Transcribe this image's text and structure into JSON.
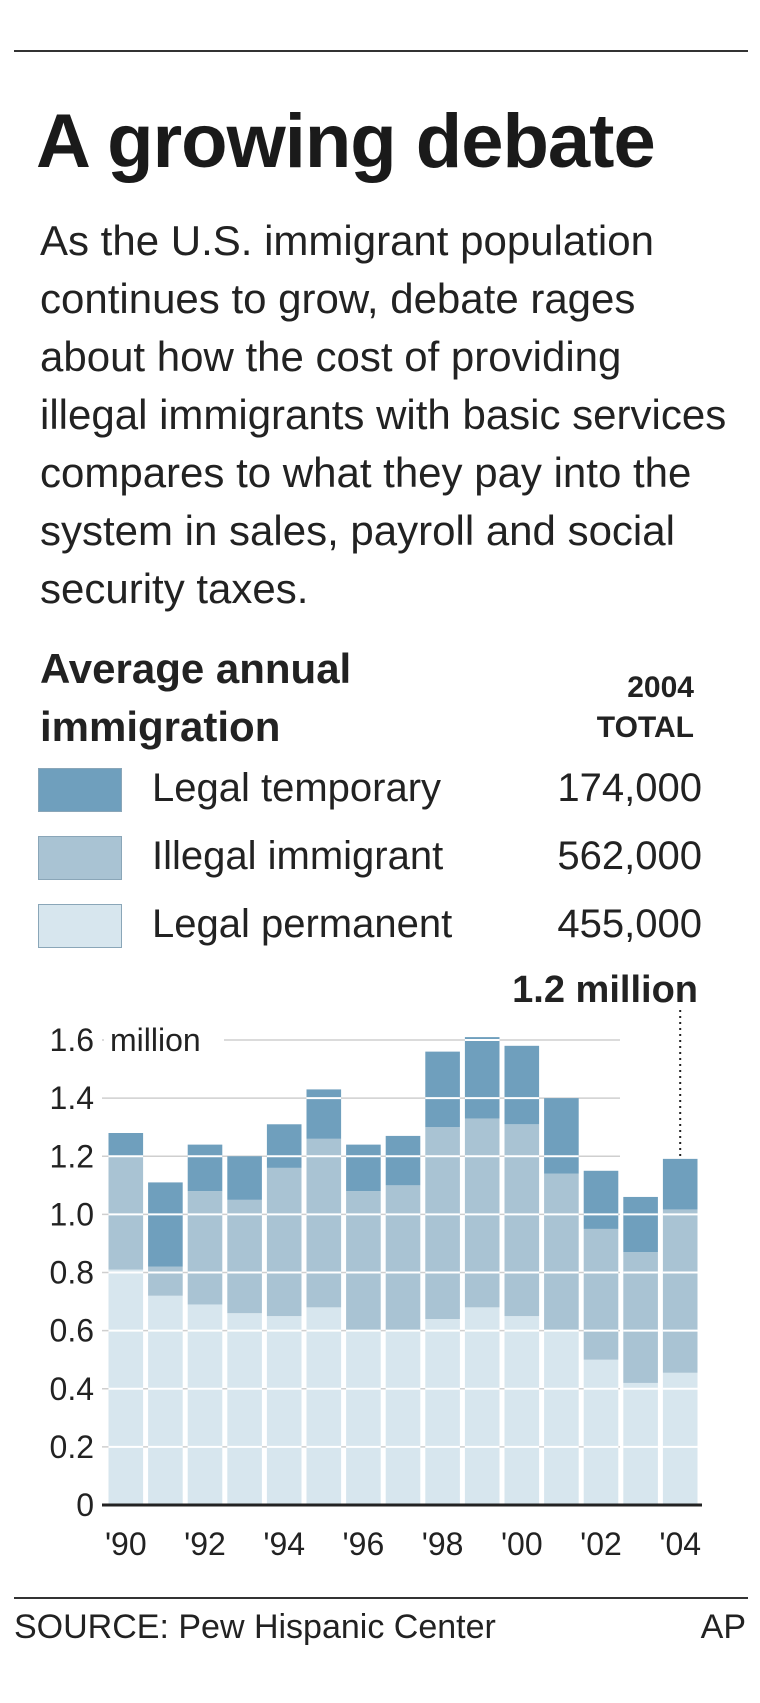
{
  "header": {
    "title": "A growing debate",
    "intro": "As the U.S. immigrant population continues to grow, debate rages about how the cost of providing illegal immigrants with basic services compares to what they pay into the system in sales, payroll and social security taxes."
  },
  "section": {
    "heading": "Average annual immigration",
    "total_heading_line1": "2004",
    "total_heading_line2": "TOTAL"
  },
  "legend": [
    {
      "label": "Legal temporary",
      "value": "174,000",
      "color": "#6f9fbd"
    },
    {
      "label": "Illegal immigrant",
      "value": "562,000",
      "color": "#a9c3d3"
    },
    {
      "label": "Legal permanent",
      "value": "455,000",
      "color": "#d7e6ee"
    }
  ],
  "chart_data": {
    "type": "bar",
    "stacked": true,
    "categories": [
      "'90",
      "'91",
      "'92",
      "'93",
      "'94",
      "'95",
      "'96",
      "'97",
      "'98",
      "'99",
      "'00",
      "'01",
      "'02",
      "'03",
      "'04"
    ],
    "x_tick_labels": [
      "'90",
      "'92",
      "'94",
      "'96",
      "'98",
      "'00",
      "'02",
      "'04"
    ],
    "series": [
      {
        "name": "Legal permanent",
        "values": [
          0.81,
          0.72,
          0.69,
          0.66,
          0.65,
          0.68,
          0.6,
          0.6,
          0.64,
          0.68,
          0.65,
          0.6,
          0.5,
          0.42,
          0.455
        ]
      },
      {
        "name": "Illegal immigrant",
        "values": [
          0.39,
          0.1,
          0.39,
          0.39,
          0.51,
          0.58,
          0.48,
          0.5,
          0.66,
          0.65,
          0.66,
          0.54,
          0.45,
          0.45,
          0.562
        ]
      },
      {
        "name": "Legal temporary",
        "values": [
          0.08,
          0.29,
          0.16,
          0.15,
          0.15,
          0.17,
          0.16,
          0.17,
          0.26,
          0.28,
          0.27,
          0.26,
          0.2,
          0.19,
          0.174
        ]
      }
    ],
    "y_ticks": [
      "0",
      "0.2",
      "0.4",
      "0.6",
      "0.8",
      "1.0",
      "1.2",
      "1.4",
      "1.6"
    ],
    "y_unit_label": "million",
    "ylim": [
      0,
      1.6
    ],
    "grid": true,
    "annotation": "1.2 million",
    "colors": {
      "Legal permanent": "#d7e6ee",
      "Illegal immigrant": "#a9c3d3",
      "Legal temporary": "#6f9fbd"
    }
  },
  "footer": {
    "source": "SOURCE: Pew Hispanic Center",
    "credit": "AP"
  }
}
